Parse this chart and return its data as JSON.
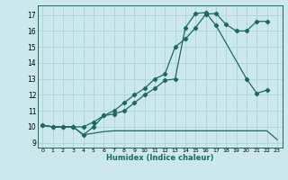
{
  "xlabel": "Humidex (Indice chaleur)",
  "bg_color": "#cce8ec",
  "grid_color": "#aed4d8",
  "line_color": "#1a6b5e",
  "xlim": [
    -0.5,
    23.5
  ],
  "ylim": [
    8.7,
    17.6
  ],
  "yticks": [
    9,
    10,
    11,
    12,
    13,
    14,
    15,
    16,
    17
  ],
  "xticks": [
    0,
    1,
    2,
    3,
    4,
    5,
    6,
    7,
    8,
    9,
    10,
    11,
    12,
    13,
    14,
    15,
    16,
    17,
    18,
    19,
    20,
    21,
    22,
    23
  ],
  "curve1_x": [
    0,
    1,
    2,
    3,
    4,
    5,
    6,
    7,
    8,
    9,
    10,
    11,
    12,
    13,
    14,
    15,
    16,
    17,
    18,
    19,
    20,
    21,
    22,
    23
  ],
  "curve1_y": [
    10.1,
    10.0,
    10.0,
    10.0,
    9.5,
    9.6,
    9.7,
    9.75,
    9.75,
    9.75,
    9.75,
    9.75,
    9.75,
    9.75,
    9.75,
    9.75,
    9.75,
    9.75,
    9.75,
    9.75,
    9.75,
    9.75,
    9.75,
    9.2
  ],
  "curve2_x": [
    0,
    1,
    2,
    3,
    4,
    5,
    6,
    7,
    8,
    9,
    10,
    11,
    12,
    13,
    14,
    15,
    16,
    17,
    18,
    19,
    20,
    21,
    22
  ],
  "curve2_y": [
    10.1,
    10.0,
    10.0,
    10.0,
    10.0,
    10.3,
    10.7,
    11.0,
    11.5,
    12.0,
    12.4,
    13.0,
    13.3,
    15.0,
    15.5,
    16.2,
    17.05,
    17.1,
    16.4,
    16.0,
    16.0,
    16.6,
    16.6
  ],
  "curve3_x": [
    0,
    1,
    2,
    3,
    4,
    5,
    6,
    7,
    8,
    9,
    10,
    11,
    12,
    13,
    14,
    15,
    16,
    17,
    20,
    21,
    22
  ],
  "curve3_y": [
    10.1,
    10.0,
    10.0,
    10.0,
    9.5,
    10.0,
    10.7,
    10.8,
    11.0,
    11.5,
    12.0,
    12.4,
    12.9,
    13.0,
    16.2,
    17.1,
    17.15,
    16.35,
    13.0,
    12.1,
    12.3
  ],
  "marker_size": 2.2,
  "line_width": 0.9
}
